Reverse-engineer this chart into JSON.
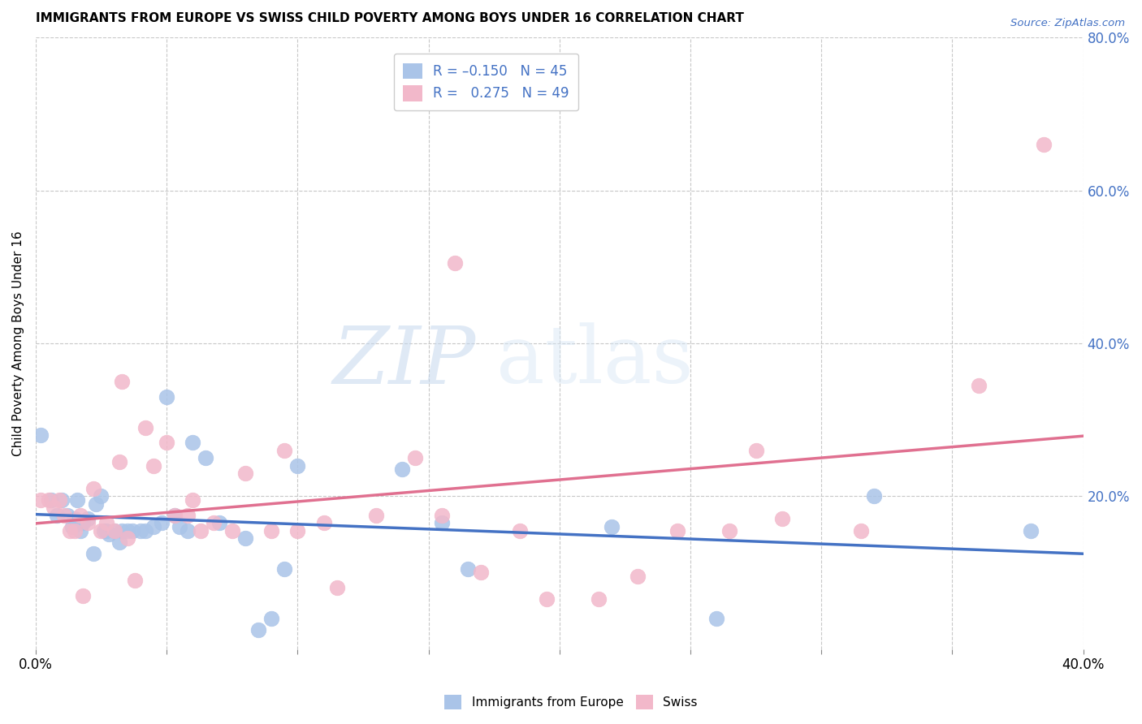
{
  "title": "IMMIGRANTS FROM EUROPE VS SWISS CHILD POVERTY AMONG BOYS UNDER 16 CORRELATION CHART",
  "source": "Source: ZipAtlas.com",
  "ylabel": "Child Poverty Among Boys Under 16",
  "xlim": [
    0.0,
    0.4
  ],
  "ylim": [
    0.0,
    0.8
  ],
  "blue_color": "#aac4e8",
  "pink_color": "#f2b8ca",
  "blue_line_color": "#4472c4",
  "pink_line_color": "#e07090",
  "watermark_zip": "ZIP",
  "watermark_atlas": "atlas",
  "blue_points_x": [
    0.002,
    0.006,
    0.008,
    0.01,
    0.012,
    0.014,
    0.015,
    0.016,
    0.017,
    0.018,
    0.02,
    0.022,
    0.023,
    0.025,
    0.026,
    0.027,
    0.028,
    0.03,
    0.032,
    0.033,
    0.035,
    0.037,
    0.04,
    0.042,
    0.045,
    0.048,
    0.05,
    0.053,
    0.055,
    0.058,
    0.06,
    0.065,
    0.07,
    0.08,
    0.085,
    0.09,
    0.095,
    0.1,
    0.14,
    0.155,
    0.165,
    0.22,
    0.26,
    0.32,
    0.38
  ],
  "blue_points_y": [
    0.28,
    0.195,
    0.175,
    0.195,
    0.175,
    0.16,
    0.17,
    0.195,
    0.155,
    0.165,
    0.17,
    0.125,
    0.19,
    0.2,
    0.155,
    0.155,
    0.15,
    0.155,
    0.14,
    0.155,
    0.155,
    0.155,
    0.155,
    0.155,
    0.16,
    0.165,
    0.33,
    0.175,
    0.16,
    0.155,
    0.27,
    0.25,
    0.165,
    0.145,
    0.025,
    0.04,
    0.105,
    0.24,
    0.235,
    0.165,
    0.105,
    0.16,
    0.04,
    0.2,
    0.155
  ],
  "pink_points_x": [
    0.002,
    0.005,
    0.007,
    0.009,
    0.011,
    0.013,
    0.015,
    0.017,
    0.018,
    0.02,
    0.022,
    0.025,
    0.027,
    0.03,
    0.032,
    0.033,
    0.035,
    0.038,
    0.042,
    0.045,
    0.05,
    0.053,
    0.058,
    0.06,
    0.063,
    0.068,
    0.075,
    0.08,
    0.09,
    0.095,
    0.1,
    0.11,
    0.115,
    0.13,
    0.145,
    0.155,
    0.16,
    0.17,
    0.185,
    0.195,
    0.215,
    0.23,
    0.245,
    0.265,
    0.275,
    0.285,
    0.315,
    0.36,
    0.385
  ],
  "pink_points_y": [
    0.195,
    0.195,
    0.185,
    0.195,
    0.175,
    0.155,
    0.155,
    0.175,
    0.07,
    0.165,
    0.21,
    0.155,
    0.165,
    0.155,
    0.245,
    0.35,
    0.145,
    0.09,
    0.29,
    0.24,
    0.27,
    0.175,
    0.175,
    0.195,
    0.155,
    0.165,
    0.155,
    0.23,
    0.155,
    0.26,
    0.155,
    0.165,
    0.08,
    0.175,
    0.25,
    0.175,
    0.505,
    0.1,
    0.155,
    0.065,
    0.065,
    0.095,
    0.155,
    0.155,
    0.26,
    0.17,
    0.155,
    0.345,
    0.66
  ]
}
